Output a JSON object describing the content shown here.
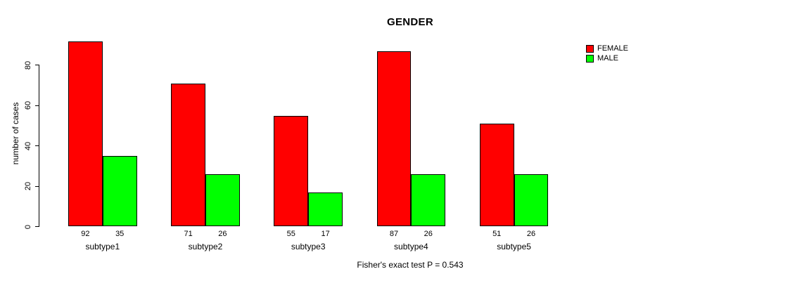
{
  "chart_data": {
    "type": "bar",
    "title": "GENDER",
    "ylabel": "number of cases",
    "xlabel": "",
    "caption": "Fisher's exact test P = 0.543",
    "categories": [
      "subtype1",
      "subtype2",
      "subtype3",
      "subtype4",
      "subtype5"
    ],
    "series": [
      {
        "name": "FEMALE",
        "color": "#ff0000",
        "values": [
          92,
          71,
          55,
          87,
          51
        ]
      },
      {
        "name": "MALE",
        "color": "#00ff00",
        "values": [
          35,
          26,
          17,
          26,
          26
        ]
      }
    ],
    "yticks": [
      0,
      20,
      40,
      60,
      80
    ],
    "ylim": [
      0,
      92
    ],
    "grid": false,
    "bar_value_labels": true,
    "legend_position": "top-right",
    "colors": {
      "axis": "#000000",
      "text": "#000000",
      "background": "#ffffff"
    }
  }
}
